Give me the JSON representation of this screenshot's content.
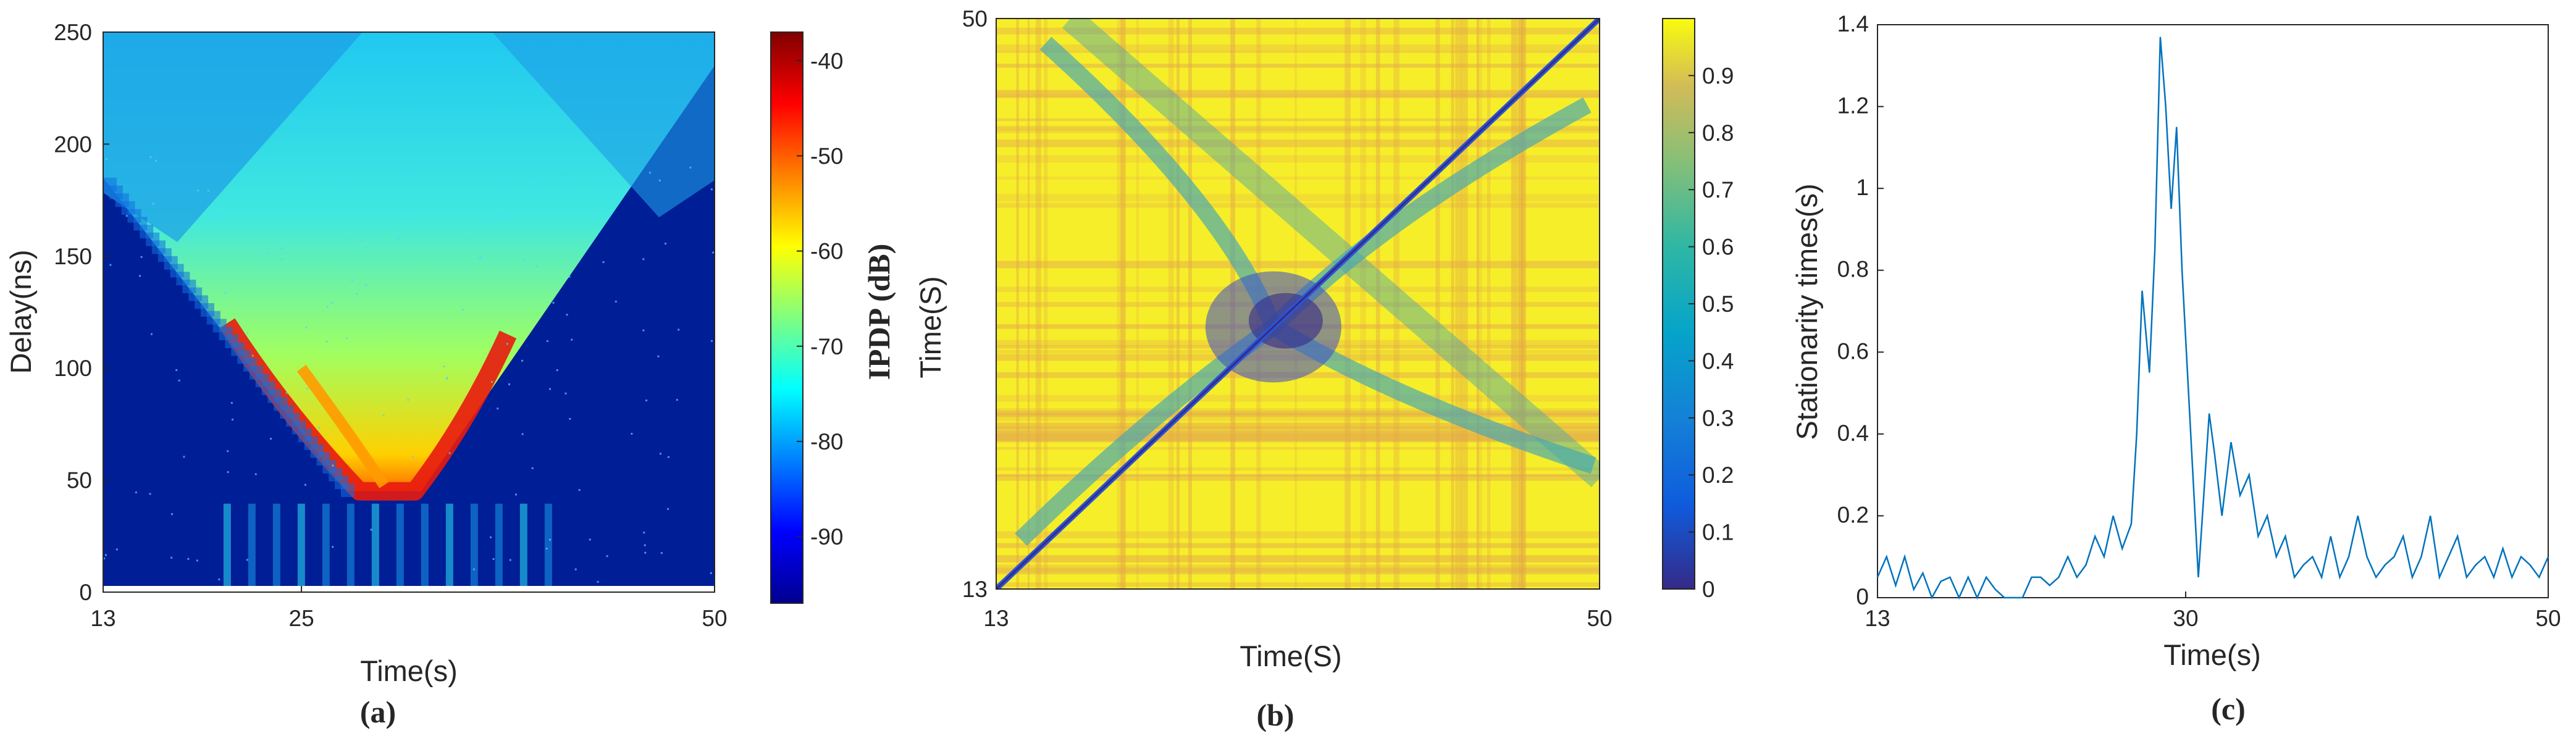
{
  "chart_data": [
    {
      "type": "heatmap",
      "caption": "(a)",
      "xlabel": "Time(s)",
      "ylabel": "Delay(ns)",
      "xlim": [
        13,
        50
      ],
      "ylim": [
        0,
        250
      ],
      "xticks": [
        "13",
        "25",
        "50"
      ],
      "yticks": [
        "0",
        "50",
        "100",
        "150",
        "200",
        "250"
      ],
      "colorbar": {
        "label": "IPDP (dB)",
        "range": [
          -97,
          -37
        ],
        "ticks": [
          "-40",
          "-50",
          "-60",
          "-70",
          "-80",
          "-90"
        ],
        "colormap": "jet"
      },
      "features": {
        "v_shape_apex_time": 30,
        "v_shape_min_delay": 45,
        "edge_delay_at_13s": 185,
        "edge_delay_at_50s": 235,
        "peak_level_db": -40,
        "floor_level_db": -96
      }
    },
    {
      "type": "heatmap",
      "caption": "(b)",
      "xlabel": "Time(S)",
      "ylabel": "Time(S)",
      "xlim": [
        13,
        50
      ],
      "ylim": [
        13,
        50
      ],
      "xticks": [
        "13",
        "50"
      ],
      "yticks": [
        "13",
        "50"
      ],
      "colorbar": {
        "range": [
          0,
          1
        ],
        "ticks": [
          "0",
          "0.1",
          "0.2",
          "0.3",
          "0.4",
          "0.5",
          "0.6",
          "0.7",
          "0.8",
          "0.9"
        ],
        "colormap": "parula"
      },
      "features": {
        "diagonal_value": 0.12,
        "background_value": 0.97,
        "cross_center_time": 30
      }
    },
    {
      "type": "line",
      "caption": "(c)",
      "xlabel": "Time(s)",
      "ylabel": "Stationarity times(s)",
      "xlim": [
        13,
        50
      ],
      "ylim": [
        0,
        1.4
      ],
      "xticks": [
        "13",
        "30",
        "50"
      ],
      "yticks": [
        "0",
        "0.2",
        "0.4",
        "0.6",
        "0.8",
        "1",
        "1.2",
        "1.4"
      ],
      "color": "#0072BD",
      "series": [
        {
          "x": [
            13,
            13.5,
            14,
            14.5,
            15,
            15.5,
            16,
            16.5,
            17,
            17.5,
            18,
            18.5,
            19,
            19.5,
            20,
            20.5,
            21,
            21.5,
            22,
            22.5,
            23,
            23.5,
            24,
            24.5,
            25,
            25.5,
            26,
            26.5,
            27,
            27.3,
            27.6,
            28,
            28.3,
            28.6,
            28.9,
            29.2,
            29.5,
            29.8,
            30.1,
            30.4,
            30.7,
            31,
            31.3,
            31.6,
            32,
            32.5,
            33,
            33.5,
            34,
            34.5,
            35,
            35.5,
            36,
            36.5,
            37,
            37.5,
            38,
            38.5,
            39,
            39.5,
            40,
            40.5,
            41,
            41.5,
            42,
            42.5,
            43,
            43.5,
            44,
            44.5,
            45,
            45.5,
            46,
            46.5,
            47,
            47.5,
            48,
            48.5,
            49,
            49.5,
            50
          ],
          "y": [
            0.05,
            0.1,
            0.03,
            0.1,
            0.02,
            0.06,
            0,
            0.04,
            0.05,
            0,
            0.05,
            0,
            0.05,
            0.02,
            0,
            0,
            0,
            0.05,
            0.05,
            0.03,
            0.05,
            0.1,
            0.05,
            0.08,
            0.15,
            0.1,
            0.2,
            0.12,
            0.18,
            0.4,
            0.75,
            0.55,
            0.85,
            1.37,
            1.2,
            0.95,
            1.15,
            0.8,
            0.55,
            0.3,
            0.05,
            0.25,
            0.45,
            0.35,
            0.2,
            0.38,
            0.25,
            0.3,
            0.15,
            0.2,
            0.1,
            0.15,
            0.05,
            0.08,
            0.1,
            0.05,
            0.15,
            0.05,
            0.1,
            0.2,
            0.1,
            0.05,
            0.08,
            0.1,
            0.15,
            0.05,
            0.1,
            0.2,
            0.05,
            0.1,
            0.15,
            0.05,
            0.08,
            0.1,
            0.05,
            0.12,
            0.05,
            0.1,
            0.08,
            0.05,
            0.1
          ]
        }
      ]
    }
  ]
}
